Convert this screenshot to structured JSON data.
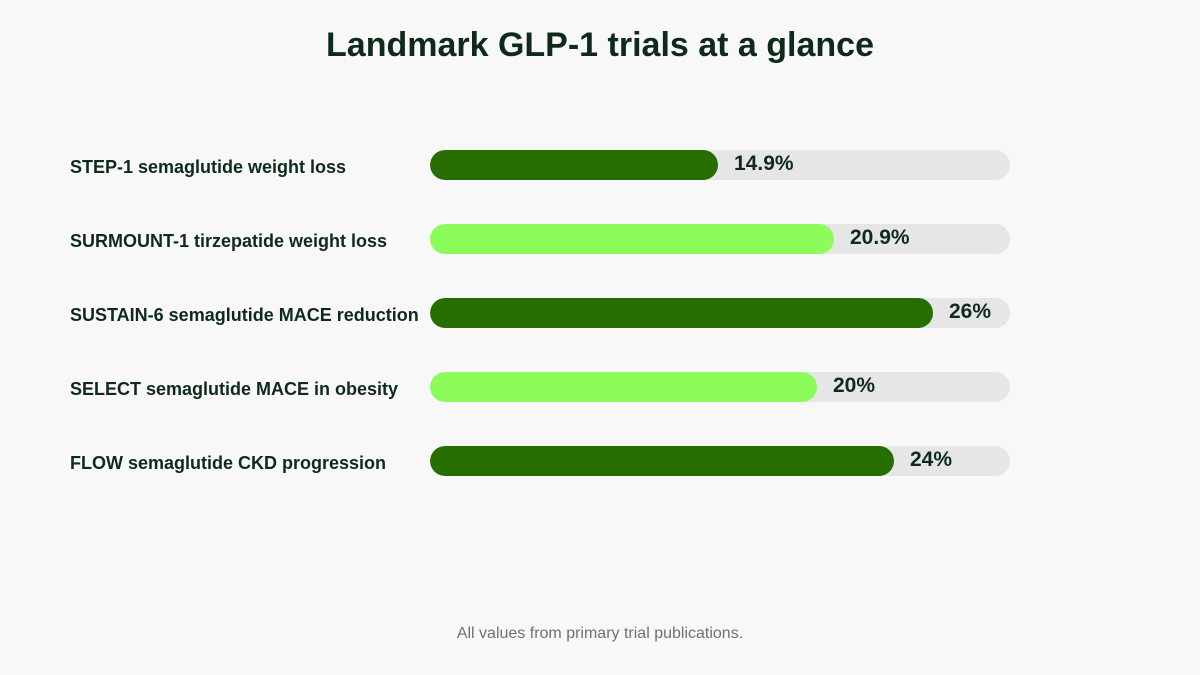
{
  "chart_data": {
    "type": "bar",
    "orientation": "horizontal",
    "title": "Landmark GLP-1 trials at a glance",
    "categories": [
      "STEP-1 semaglutide weight loss",
      "SURMOUNT-1 tirzepatide weight loss",
      "SUSTAIN-6 semaglutide MACE reduction",
      "SELECT semaglutide MACE in obesity",
      "FLOW semaglutide CKD progression"
    ],
    "values": [
      14.9,
      20.9,
      26,
      20,
      24
    ],
    "value_labels": [
      "14.9%",
      "20.9%",
      "26%",
      "20%",
      "24%"
    ],
    "bar_colors": [
      "#266e00",
      "#8cfc5a",
      "#266e00",
      "#8cfc5a",
      "#266e00"
    ],
    "xlim": [
      0,
      30
    ],
    "unit": "%",
    "grid": false,
    "legend": "none",
    "footnote": "All values from primary trial publications."
  },
  "colors": {
    "dark_green": "#266e00",
    "light_green": "#8cfc5a",
    "track": "#e6e6e6",
    "text": "#0f2a1a",
    "footnote": "#707070",
    "background": "#f8f8f8"
  }
}
